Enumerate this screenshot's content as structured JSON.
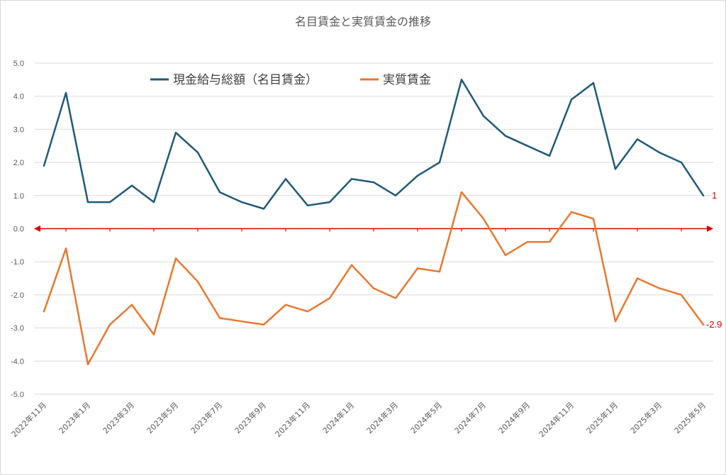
{
  "chart_data": {
    "type": "line",
    "title": "名目賃金と実質賃金の推移",
    "xlabel": "",
    "ylabel": "",
    "ylim": [
      -5.0,
      5.0
    ],
    "ytick_labels": [
      "5.0",
      "4.0",
      "3.0",
      "2.0",
      "1.0",
      "0.0",
      "-1.0",
      "-2.0",
      "-3.0",
      "-4.0",
      "-5.0"
    ],
    "x_tick_labels": [
      "2022年11月",
      "2023年1月",
      "2023年3月",
      "2023年5月",
      "2023年7月",
      "2023年9月",
      "2023年11月",
      "2024年1月",
      "2024年3月",
      "2024年5月",
      "2024年7月",
      "2024年9月",
      "2024年11月",
      "2025年1月",
      "2025年3月",
      "2025年5月"
    ],
    "categories": [
      "2022年11月",
      "2022年12月",
      "2023年1月",
      "2023年2月",
      "2023年3月",
      "2023年4月",
      "2023年5月",
      "2023年6月",
      "2023年7月",
      "2023年8月",
      "2023年9月",
      "2023年10月",
      "2023年11月",
      "2023年12月",
      "2024年1月",
      "2024年2月",
      "2024年3月",
      "2024年4月",
      "2024年5月",
      "2024年6月",
      "2024年7月",
      "2024年8月",
      "2024年9月",
      "2024年10月",
      "2024年11月",
      "2024年12月",
      "2025年1月",
      "2025年2月",
      "2025年3月",
      "2025年4月",
      "2025年5月"
    ],
    "grid": true,
    "legend_position": "top",
    "series": [
      {
        "name": "現金給与総額（名目賃金）",
        "color": "#1f5a7a",
        "values": [
          1.9,
          4.1,
          0.8,
          0.8,
          1.3,
          0.8,
          2.9,
          2.3,
          1.1,
          0.8,
          0.6,
          1.5,
          0.7,
          0.8,
          1.5,
          1.4,
          1.0,
          1.6,
          2.0,
          4.5,
          3.4,
          2.8,
          2.5,
          2.2,
          3.9,
          4.4,
          1.8,
          2.7,
          2.3,
          2.0,
          1.0
        ],
        "end_label": "1"
      },
      {
        "name": "実質賃金",
        "color": "#e8782f",
        "values": [
          -2.5,
          -0.6,
          -4.1,
          -2.9,
          -2.3,
          -3.2,
          -0.9,
          -1.6,
          -2.7,
          -2.8,
          -2.9,
          -2.3,
          -2.5,
          -2.1,
          -1.1,
          -1.8,
          -2.1,
          -1.2,
          -1.3,
          1.1,
          0.3,
          -0.8,
          -0.4,
          -0.4,
          0.5,
          0.3,
          -2.8,
          -1.5,
          -1.8,
          -2.0,
          -2.9
        ],
        "end_label": "-2.9"
      }
    ],
    "zero_line_color": "#e00000"
  }
}
